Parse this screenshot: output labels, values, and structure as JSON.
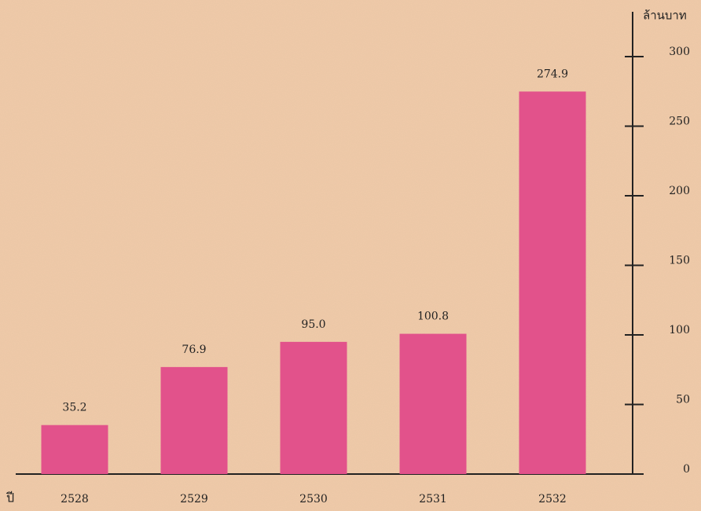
{
  "chart_data": {
    "type": "bar",
    "x_label": "ปี",
    "y_label": "ล้านบาท",
    "categories": [
      "2528",
      "2529",
      "2530",
      "2531",
      "2532"
    ],
    "values": [
      35.2,
      76.9,
      95.0,
      100.8,
      274.9
    ],
    "value_labels": [
      "35.2",
      "76.9",
      "95.0",
      "100.8",
      "274.9"
    ],
    "color": "#e2528b",
    "ylim": [
      0,
      300
    ],
    "yticks": [
      0,
      50,
      100,
      150,
      200,
      250,
      300
    ],
    "grid": false
  }
}
